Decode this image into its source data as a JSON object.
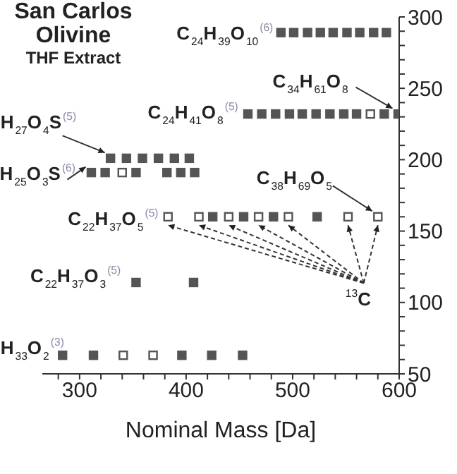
{
  "chart_data": {
    "type": "scatter",
    "title": "San Carlos Olivine",
    "subtitle": "THF Extract",
    "xlabel": "Nominal Mass [Da]",
    "marker": "square",
    "grid": false,
    "legend": false,
    "xlim": [
      265,
      600
    ],
    "xticks": [
      {
        "value": 280,
        "label": null
      },
      300,
      {
        "value": 320,
        "label": null
      },
      {
        "value": 340,
        "label": null
      },
      {
        "value": 360,
        "label": null
      },
      {
        "value": 380,
        "label": null
      },
      400,
      {
        "value": 420,
        "label": null
      },
      {
        "value": 440,
        "label": null
      },
      {
        "value": 460,
        "label": null
      },
      {
        "value": 480,
        "label": null
      },
      500,
      {
        "value": 520,
        "label": null
      },
      {
        "value": 540,
        "label": null
      },
      {
        "value": 560,
        "label": null
      },
      {
        "value": 580,
        "label": null
      },
      600
    ],
    "ylim": [
      50,
      300
    ],
    "yticks": [
      50,
      {
        "value": 60,
        "label": null
      },
      {
        "value": 70,
        "label": null
      },
      {
        "value": 80,
        "label": null
      },
      {
        "value": 90,
        "label": null
      },
      100,
      {
        "value": 110,
        "label": null
      },
      {
        "value": 120,
        "label": null
      },
      {
        "value": 130,
        "label": null
      },
      {
        "value": 140,
        "label": null
      },
      150,
      {
        "value": 160,
        "label": null
      },
      {
        "value": 170,
        "label": null
      },
      {
        "value": 180,
        "label": null
      },
      {
        "value": 190,
        "label": null
      },
      200,
      {
        "value": 210,
        "label": null
      },
      {
        "value": 220,
        "label": null
      },
      {
        "value": 230,
        "label": null
      },
      {
        "value": 240,
        "label": null
      },
      250,
      {
        "value": 260,
        "label": null
      },
      {
        "value": 270,
        "label": null
      },
      {
        "value": 280,
        "label": null
      },
      {
        "value": 290,
        "label": null
      },
      300
    ],
    "series": [
      {
        "color": "#555555",
        "x": [
          489,
          501,
          514,
          526,
          538,
          551,
          563,
          576,
          588,
          458,
          471,
          484,
          497,
          509,
          522,
          535,
          548,
          560,
          586,
          599,
          329,
          344,
          359,
          374,
          389,
          403,
          311,
          324,
          353,
          382,
          395,
          408,
          425,
          454,
          482,
          523,
          353,
          407,
          284,
          313,
          396,
          424,
          453
        ],
        "values": [
          289,
          289,
          289,
          289,
          289,
          289,
          289,
          289,
          289,
          232,
          232,
          232,
          232,
          232,
          232,
          232,
          232,
          232,
          232,
          232,
          201,
          201,
          201,
          201,
          201,
          201,
          191,
          191,
          191,
          191,
          191,
          191,
          160,
          160,
          160,
          160,
          114,
          114,
          63,
          63,
          63,
          63,
          63
        ]
      },
      {
        "color": "#ffffff",
        "x": [
          573,
          340,
          383,
          412,
          440,
          468,
          496,
          552,
          580,
          341,
          369
        ],
        "values": [
          232,
          191,
          160,
          160,
          160,
          160,
          160,
          160,
          160,
          63,
          63
        ]
      }
    ],
    "annotations": [
      {
        "text": "C$_{24}$H$_{39}$O$_{10}$$^{(6)}$",
        "x": 489,
        "y": 289
      },
      {
        "text": "C$_{34}$H$_{61}$O$_{8}$",
        "x": 599,
        "y": 232
      },
      {
        "text": "C$_{24}$H$_{41}$O$_{8}$$^{(5)}$",
        "x": 458,
        "y": 232
      },
      {
        "text": "H$_{27}$O$_{4}$S$^{(5)}$",
        "x": 329,
        "y": 201
      },
      {
        "text": "H$_{25}$O$_{3}$S$^{(6)}$",
        "x": 311,
        "y": 191
      },
      {
        "text": "C$_{38}$H$_{69}$O$_{5}$",
        "x": 580,
        "y": 160
      },
      {
        "text": "C$_{22}$H$_{37}$O$_{5}$$^{(5)}$",
        "x": 383,
        "y": 160
      },
      {
        "text": "$^{13}$C",
        "x": 580,
        "y": 160
      },
      {
        "text": "C$_{22}$H$_{37}$O$_{3}$$^{(5)}$",
        "x": 353,
        "y": 114
      },
      {
        "text": "H$_{33}$O$_{2}$$^{(3)}$",
        "x": 284,
        "y": 63
      }
    ]
  }
}
